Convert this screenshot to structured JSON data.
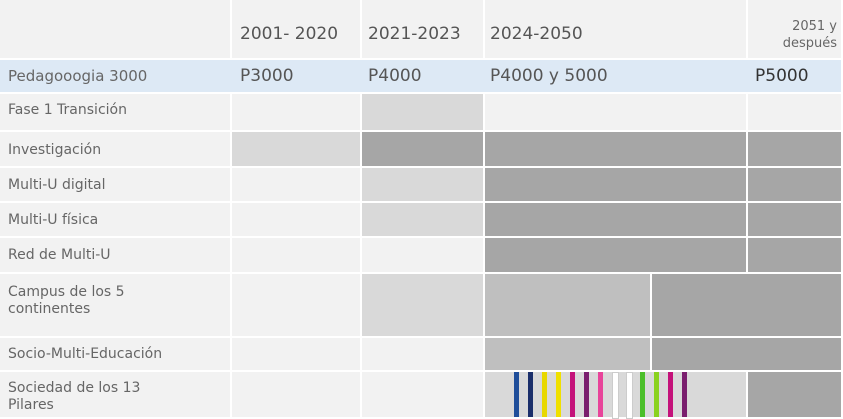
{
  "header": {
    "columns": [
      "2001- 2020",
      "2021-2023",
      "2024-2050",
      "2051 y después"
    ]
  },
  "rows": [
    {
      "label": "Pedagooogia 3000",
      "values": [
        "P3000",
        "P4000",
        "P4000 y 5000",
        "P5000"
      ]
    },
    {
      "label": "Fase 1 Transición"
    },
    {
      "label": "Investigación"
    },
    {
      "label": "Multi-U digital"
    },
    {
      "label": "Multi-U física"
    },
    {
      "label": "Red de Multi-U"
    },
    {
      "label": "Campus de los 5 continentes"
    },
    {
      "label": "Socio-Multi-Educación"
    },
    {
      "label": "Sociedad de los 13 Pilares"
    }
  ]
}
